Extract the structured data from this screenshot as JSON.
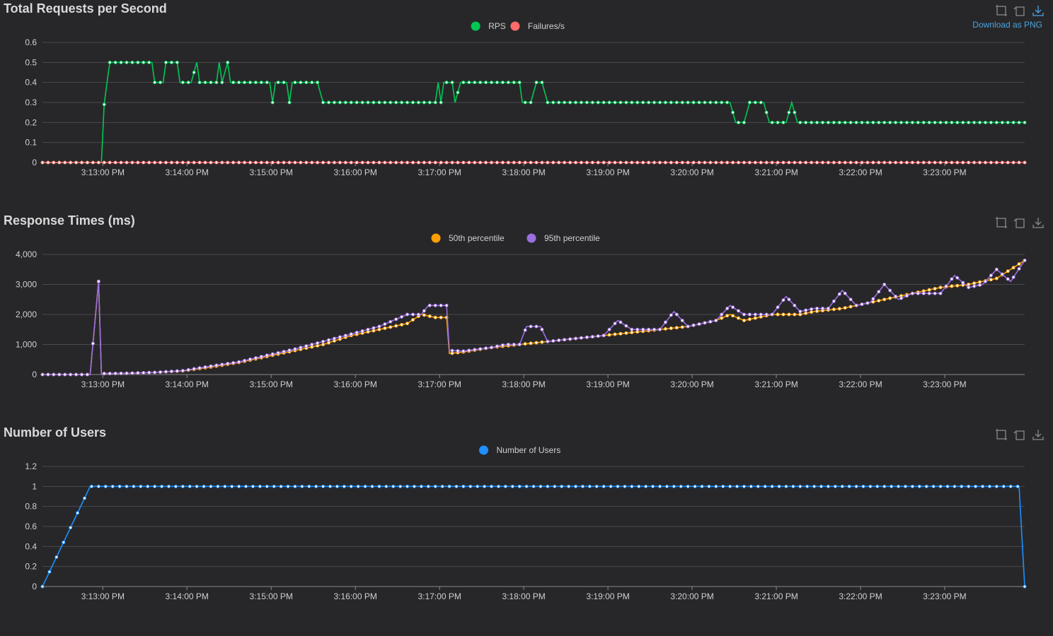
{
  "panels": [
    {
      "title": "Total Requests per Second",
      "download_label": "Download as PNG",
      "toolbox": [
        "zoom-icon",
        "zoom-reset-icon",
        "download-icon"
      ]
    },
    {
      "title": "Response Times (ms)",
      "toolbox": [
        "zoom-icon",
        "zoom-reset-icon",
        "download-icon"
      ]
    },
    {
      "title": "Number of Users",
      "toolbox": [
        "zoom-icon",
        "zoom-reset-icon",
        "download-icon"
      ]
    }
  ],
  "chart_data": [
    {
      "type": "line",
      "title": "Total Requests per Second",
      "x_ticks": [
        "3:13:00 PM",
        "3:14:00 PM",
        "3:15:00 PM",
        "3:16:00 PM",
        "3:17:00 PM",
        "3:18:00 PM",
        "3:19:00 PM",
        "3:20:00 PM",
        "3:21:00 PM",
        "3:22:00 PM",
        "3:23:00 PM"
      ],
      "y_ticks": [
        "0",
        "0.1",
        "0.2",
        "0.3",
        "0.4",
        "0.5",
        "0.6"
      ],
      "ylim": [
        0,
        0.6
      ],
      "xlim": [
        "3:12:17 PM",
        "3:23:57 PM"
      ],
      "grid": true,
      "legend_position": "top-center",
      "series": [
        {
          "name": "RPS",
          "color": "#00c853",
          "points": [
            [
              0,
              0
            ],
            [
              42,
              0
            ],
            [
              44,
              0.29
            ],
            [
              46,
              0.4
            ],
            [
              48,
              0.5
            ],
            [
              58,
              0.5
            ],
            [
              78,
              0.5
            ],
            [
              80,
              0.4
            ],
            [
              86,
              0.4
            ],
            [
              88,
              0.5
            ],
            [
              96,
              0.5
            ],
            [
              98,
              0.4
            ],
            [
              106,
              0.4
            ],
            [
              110,
              0.5
            ],
            [
              112,
              0.4
            ],
            [
              124,
              0.4
            ],
            [
              126,
              0.5
            ],
            [
              128,
              0.4
            ],
            [
              132,
              0.5
            ],
            [
              134,
              0.4
            ],
            [
              162,
              0.4
            ],
            [
              164,
              0.3
            ],
            [
              166,
              0.4
            ],
            [
              174,
              0.4
            ],
            [
              176,
              0.3
            ],
            [
              178,
              0.4
            ],
            [
              196,
              0.4
            ],
            [
              200,
              0.3
            ],
            [
              280,
              0.3
            ],
            [
              282,
              0.4
            ],
            [
              284,
              0.3
            ],
            [
              286,
              0.4
            ],
            [
              292,
              0.4
            ],
            [
              294,
              0.3
            ],
            [
              298,
              0.4
            ],
            [
              340,
              0.4
            ],
            [
              342,
              0.3
            ],
            [
              348,
              0.3
            ],
            [
              352,
              0.4
            ],
            [
              356,
              0.4
            ],
            [
              360,
              0.3
            ],
            [
              490,
              0.3
            ],
            [
              494,
              0.2
            ],
            [
              500,
              0.2
            ],
            [
              504,
              0.3
            ],
            [
              514,
              0.3
            ],
            [
              518,
              0.2
            ],
            [
              530,
              0.2
            ],
            [
              534,
              0.3
            ],
            [
              538,
              0.2
            ],
            [
              700,
              0.2
            ]
          ]
        },
        {
          "name": "Failures/s",
          "color": "#ff6b6b",
          "points": [
            [
              0,
              0
            ],
            [
              700,
              0
            ]
          ]
        }
      ]
    },
    {
      "type": "line",
      "title": "Response Times (ms)",
      "x_ticks": [
        "3:13:00 PM",
        "3:14:00 PM",
        "3:15:00 PM",
        "3:16:00 PM",
        "3:17:00 PM",
        "3:18:00 PM",
        "3:19:00 PM",
        "3:20:00 PM",
        "3:21:00 PM",
        "3:22:00 PM",
        "3:23:00 PM"
      ],
      "y_ticks": [
        "0",
        "1,000",
        "2,000",
        "3,000",
        "4,000"
      ],
      "ylim": [
        0,
        4000
      ],
      "xlim": [
        "3:12:17 PM",
        "3:23:57 PM"
      ],
      "grid": true,
      "legend_position": "top-center",
      "series": [
        {
          "name": "50th percentile",
          "color": "#ff9f00",
          "points": [
            [
              0,
              0
            ],
            [
              34,
              0
            ],
            [
              40,
              3100
            ],
            [
              42,
              30
            ],
            [
              60,
              40
            ],
            [
              80,
              70
            ],
            [
              100,
              120
            ],
            [
              120,
              250
            ],
            [
              140,
              400
            ],
            [
              160,
              600
            ],
            [
              180,
              800
            ],
            [
              200,
              1000
            ],
            [
              220,
              1300
            ],
            [
              240,
              1500
            ],
            [
              260,
              1700
            ],
            [
              270,
              2000
            ],
            [
              280,
              1900
            ],
            [
              288,
              1900
            ],
            [
              290,
              700
            ],
            [
              300,
              750
            ],
            [
              320,
              900
            ],
            [
              340,
              1000
            ],
            [
              360,
              1100
            ],
            [
              380,
              1200
            ],
            [
              400,
              1300
            ],
            [
              420,
              1400
            ],
            [
              440,
              1500
            ],
            [
              460,
              1600
            ],
            [
              480,
              1800
            ],
            [
              490,
              2000
            ],
            [
              500,
              1800
            ],
            [
              510,
              1900
            ],
            [
              520,
              2000
            ],
            [
              540,
              2000
            ],
            [
              550,
              2100
            ],
            [
              570,
              2200
            ],
            [
              580,
              2300
            ],
            [
              590,
              2400
            ],
            [
              600,
              2500
            ],
            [
              620,
              2700
            ],
            [
              640,
              2900
            ],
            [
              660,
              3000
            ],
            [
              680,
              3200
            ],
            [
              700,
              3800
            ]
          ]
        },
        {
          "name": "95th percentile",
          "color": "#9c6fe0",
          "points": [
            [
              0,
              0
            ],
            [
              34,
              0
            ],
            [
              40,
              3100
            ],
            [
              42,
              30
            ],
            [
              60,
              40
            ],
            [
              80,
              70
            ],
            [
              100,
              130
            ],
            [
              120,
              280
            ],
            [
              140,
              420
            ],
            [
              160,
              640
            ],
            [
              180,
              850
            ],
            [
              200,
              1100
            ],
            [
              220,
              1350
            ],
            [
              240,
              1600
            ],
            [
              250,
              1800
            ],
            [
              260,
              2000
            ],
            [
              270,
              2000
            ],
            [
              275,
              2300
            ],
            [
              288,
              2300
            ],
            [
              290,
              800
            ],
            [
              300,
              780
            ],
            [
              320,
              900
            ],
            [
              330,
              1000
            ],
            [
              340,
              1000
            ],
            [
              345,
              1600
            ],
            [
              355,
              1600
            ],
            [
              360,
              1100
            ],
            [
              380,
              1200
            ],
            [
              400,
              1300
            ],
            [
              410,
              1800
            ],
            [
              420,
              1500
            ],
            [
              440,
              1500
            ],
            [
              450,
              2100
            ],
            [
              460,
              1600
            ],
            [
              470,
              1700
            ],
            [
              480,
              1800
            ],
            [
              490,
              2300
            ],
            [
              500,
              2000
            ],
            [
              510,
              2000
            ],
            [
              520,
              2000
            ],
            [
              530,
              2600
            ],
            [
              540,
              2100
            ],
            [
              550,
              2200
            ],
            [
              560,
              2200
            ],
            [
              570,
              2800
            ],
            [
              580,
              2300
            ],
            [
              590,
              2400
            ],
            [
              600,
              3000
            ],
            [
              610,
              2500
            ],
            [
              620,
              2700
            ],
            [
              640,
              2700
            ],
            [
              650,
              3300
            ],
            [
              660,
              2900
            ],
            [
              670,
              3000
            ],
            [
              680,
              3500
            ],
            [
              690,
              3100
            ],
            [
              700,
              3800
            ]
          ]
        }
      ]
    },
    {
      "type": "line",
      "title": "Number of Users",
      "x_ticks": [
        "3:13:00 PM",
        "3:14:00 PM",
        "3:15:00 PM",
        "3:16:00 PM",
        "3:17:00 PM",
        "3:18:00 PM",
        "3:19:00 PM",
        "3:20:00 PM",
        "3:21:00 PM",
        "3:22:00 PM",
        "3:23:00 PM"
      ],
      "y_ticks": [
        "0",
        "0.2",
        "0.4",
        "0.6",
        "0.8",
        "1",
        "1.2"
      ],
      "ylim": [
        0,
        1.2
      ],
      "xlim": [
        "3:12:17 PM",
        "3:23:57 PM"
      ],
      "grid": true,
      "legend_position": "top-center",
      "series": [
        {
          "name": "Number of Users",
          "color": "#1e90ff",
          "points": [
            [
              0,
              0
            ],
            [
              34,
              1
            ],
            [
              696,
              1
            ],
            [
              700,
              0
            ]
          ]
        }
      ]
    }
  ]
}
